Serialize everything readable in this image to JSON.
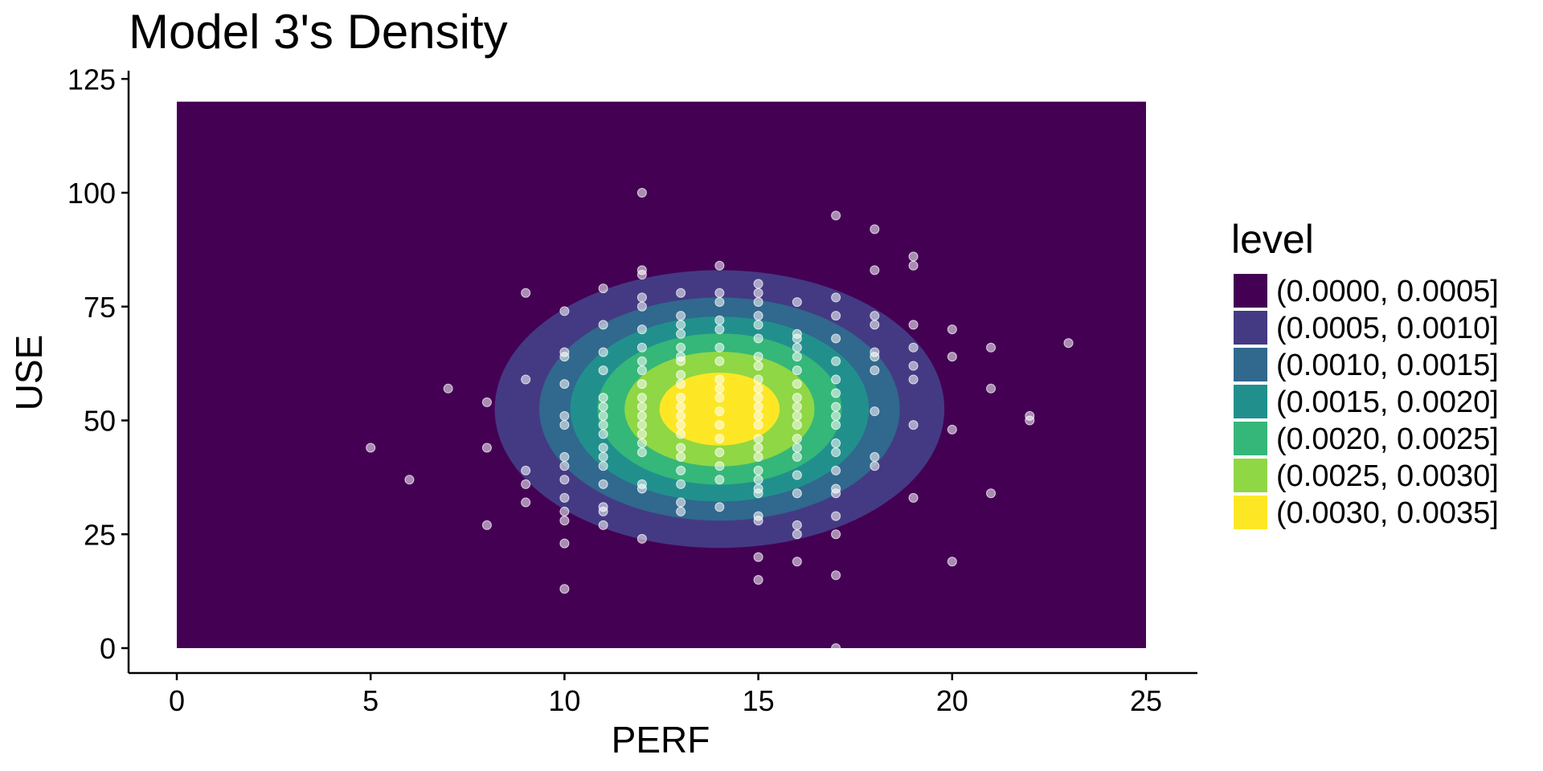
{
  "chart_data": {
    "type": "contour",
    "title": "Model 3's Density",
    "xlabel": "PERF",
    "ylabel": "USE",
    "xlim": [
      0,
      25
    ],
    "ylim": [
      0,
      120
    ],
    "x_ticks": [
      0,
      5,
      10,
      15,
      20,
      25
    ],
    "y_ticks": [
      0,
      25,
      50,
      75,
      100,
      125
    ],
    "grid": false,
    "density": {
      "center": [
        14,
        52.5
      ],
      "bands": [
        {
          "label": "(0.0000, 0.0005]",
          "color": "#440154",
          "rx": null,
          "ry": null
        },
        {
          "label": "(0.0005, 0.0010]",
          "color": "#443A83",
          "rx": 5.8,
          "ry": 30.5
        },
        {
          "label": "(0.0010, 0.0015]",
          "color": "#31688E",
          "rx": 4.65,
          "ry": 24.5
        },
        {
          "label": "(0.0015, 0.0020]",
          "color": "#21908D",
          "rx": 3.85,
          "ry": 20.3
        },
        {
          "label": "(0.0020, 0.0025]",
          "color": "#35B779",
          "rx": 3.15,
          "ry": 16.6
        },
        {
          "label": "(0.0025, 0.0030]",
          "color": "#8FD744",
          "rx": 2.45,
          "ry": 12.6
        },
        {
          "label": "(0.0030, 0.0035]",
          "color": "#FDE725",
          "rx": 1.55,
          "ry": 8.0
        }
      ]
    },
    "legend": {
      "title": "level",
      "placement": "right",
      "entries": [
        "(0.0000, 0.0005]",
        "(0.0005, 0.0010]",
        "(0.0010, 0.0015]",
        "(0.0015, 0.0020]",
        "(0.0020, 0.0025]",
        "(0.0025, 0.0030]",
        "(0.0030, 0.0035]"
      ]
    },
    "points": [
      [
        5,
        44
      ],
      [
        6,
        37
      ],
      [
        7,
        57
      ],
      [
        8,
        54
      ],
      [
        8,
        44
      ],
      [
        8,
        27
      ],
      [
        9,
        78
      ],
      [
        9,
        59
      ],
      [
        9,
        39
      ],
      [
        9,
        36
      ],
      [
        9,
        32
      ],
      [
        10,
        74
      ],
      [
        10,
        65
      ],
      [
        10,
        64
      ],
      [
        10,
        58
      ],
      [
        10,
        51
      ],
      [
        10,
        49
      ],
      [
        10,
        42
      ],
      [
        10,
        40
      ],
      [
        10,
        37
      ],
      [
        10,
        33
      ],
      [
        10,
        30
      ],
      [
        10,
        28
      ],
      [
        10,
        23
      ],
      [
        10,
        13
      ],
      [
        11,
        79
      ],
      [
        11,
        71
      ],
      [
        11,
        65
      ],
      [
        11,
        61
      ],
      [
        11,
        55
      ],
      [
        11,
        53
      ],
      [
        11,
        51
      ],
      [
        11,
        49
      ],
      [
        11,
        47
      ],
      [
        11,
        44
      ],
      [
        11,
        42
      ],
      [
        11,
        40
      ],
      [
        11,
        36
      ],
      [
        11,
        31
      ],
      [
        11,
        30
      ],
      [
        11,
        27
      ],
      [
        12,
        100
      ],
      [
        12,
        83
      ],
      [
        12,
        82
      ],
      [
        12,
        77
      ],
      [
        12,
        75
      ],
      [
        12,
        70
      ],
      [
        12,
        66
      ],
      [
        12,
        63
      ],
      [
        12,
        61
      ],
      [
        12,
        58
      ],
      [
        12,
        55
      ],
      [
        12,
        53
      ],
      [
        12,
        51
      ],
      [
        12,
        49
      ],
      [
        12,
        47
      ],
      [
        12,
        45
      ],
      [
        12,
        43
      ],
      [
        12,
        36
      ],
      [
        12,
        35
      ],
      [
        12,
        24
      ],
      [
        13,
        78
      ],
      [
        13,
        73
      ],
      [
        13,
        71
      ],
      [
        13,
        69
      ],
      [
        13,
        66
      ],
      [
        13,
        64
      ],
      [
        13,
        63
      ],
      [
        13,
        60
      ],
      [
        13,
        58
      ],
      [
        13,
        55
      ],
      [
        13,
        53
      ],
      [
        13,
        51
      ],
      [
        13,
        49
      ],
      [
        13,
        47
      ],
      [
        13,
        44
      ],
      [
        13,
        42
      ],
      [
        13,
        39
      ],
      [
        13,
        36
      ],
      [
        13,
        32
      ],
      [
        13,
        30
      ],
      [
        14,
        84
      ],
      [
        14,
        78
      ],
      [
        14,
        76
      ],
      [
        14,
        72
      ],
      [
        14,
        70
      ],
      [
        14,
        66
      ],
      [
        14,
        63
      ],
      [
        14,
        59
      ],
      [
        14,
        57
      ],
      [
        14,
        55
      ],
      [
        14,
        52
      ],
      [
        14,
        49
      ],
      [
        14,
        46
      ],
      [
        14,
        43
      ],
      [
        14,
        40
      ],
      [
        14,
        37
      ],
      [
        14,
        31
      ],
      [
        15,
        80
      ],
      [
        15,
        78
      ],
      [
        15,
        76
      ],
      [
        15,
        73
      ],
      [
        15,
        71
      ],
      [
        15,
        68
      ],
      [
        15,
        64
      ],
      [
        15,
        62
      ],
      [
        15,
        59
      ],
      [
        15,
        57
      ],
      [
        15,
        55
      ],
      [
        15,
        53
      ],
      [
        15,
        51
      ],
      [
        15,
        49
      ],
      [
        15,
        46
      ],
      [
        15,
        44
      ],
      [
        15,
        42
      ],
      [
        15,
        39
      ],
      [
        15,
        37
      ],
      [
        15,
        35
      ],
      [
        15,
        34
      ],
      [
        15,
        29
      ],
      [
        15,
        28
      ],
      [
        15,
        20
      ],
      [
        15,
        15
      ],
      [
        16,
        76
      ],
      [
        16,
        69
      ],
      [
        16,
        68
      ],
      [
        16,
        66
      ],
      [
        16,
        64
      ],
      [
        16,
        61
      ],
      [
        16,
        58
      ],
      [
        16,
        55
      ],
      [
        16,
        53
      ],
      [
        16,
        51
      ],
      [
        16,
        49
      ],
      [
        16,
        46
      ],
      [
        16,
        44
      ],
      [
        16,
        42
      ],
      [
        16,
        38
      ],
      [
        16,
        34
      ],
      [
        16,
        27
      ],
      [
        16,
        25
      ],
      [
        16,
        19
      ],
      [
        17,
        95
      ],
      [
        17,
        77
      ],
      [
        17,
        73
      ],
      [
        17,
        68
      ],
      [
        17,
        63
      ],
      [
        17,
        59
      ],
      [
        17,
        56
      ],
      [
        17,
        53
      ],
      [
        17,
        51
      ],
      [
        17,
        49
      ],
      [
        17,
        45
      ],
      [
        17,
        43
      ],
      [
        17,
        39
      ],
      [
        17,
        35
      ],
      [
        17,
        34
      ],
      [
        17,
        29
      ],
      [
        17,
        25
      ],
      [
        17,
        16
      ],
      [
        17,
        0
      ],
      [
        18,
        92
      ],
      [
        18,
        83
      ],
      [
        18,
        73
      ],
      [
        18,
        71
      ],
      [
        18,
        65
      ],
      [
        18,
        64
      ],
      [
        18,
        61
      ],
      [
        18,
        52
      ],
      [
        18,
        42
      ],
      [
        18,
        40
      ],
      [
        19,
        86
      ],
      [
        19,
        84
      ],
      [
        19,
        71
      ],
      [
        19,
        66
      ],
      [
        19,
        62
      ],
      [
        19,
        59
      ],
      [
        19,
        49
      ],
      [
        19,
        33
      ],
      [
        20,
        70
      ],
      [
        20,
        64
      ],
      [
        20,
        48
      ],
      [
        20,
        19
      ],
      [
        21,
        66
      ],
      [
        21,
        57
      ],
      [
        21,
        34
      ],
      [
        22,
        51
      ],
      [
        22,
        50
      ],
      [
        23,
        67
      ]
    ]
  }
}
